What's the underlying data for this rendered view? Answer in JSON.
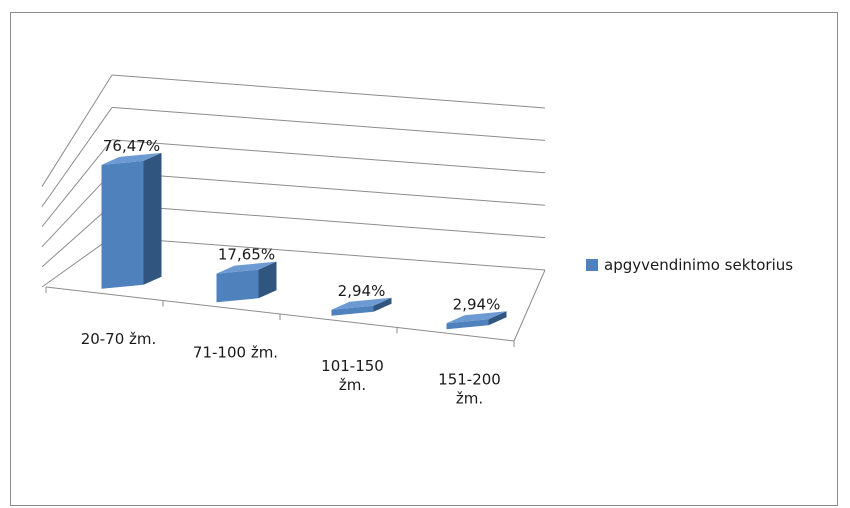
{
  "chart_data": {
    "type": "bar",
    "categories": [
      "20-70 žm.",
      "71-100 žm.",
      "101-150 žm.",
      "151-200 žm."
    ],
    "series": [
      {
        "name": "apgyvendinimo sektorius",
        "values": [
          76.47,
          17.65,
          2.94,
          2.94
        ],
        "labels": [
          "76,47%",
          "17,65%",
          "2,94%",
          "2,94%"
        ]
      }
    ],
    "title": "",
    "xlabel": "",
    "ylabel": "",
    "ylim": [
      0,
      100
    ],
    "grid": true,
    "legend": "right",
    "colors": {
      "front": "#4f81bd",
      "side": "#30557f",
      "top": "#6d9ad2"
    }
  }
}
